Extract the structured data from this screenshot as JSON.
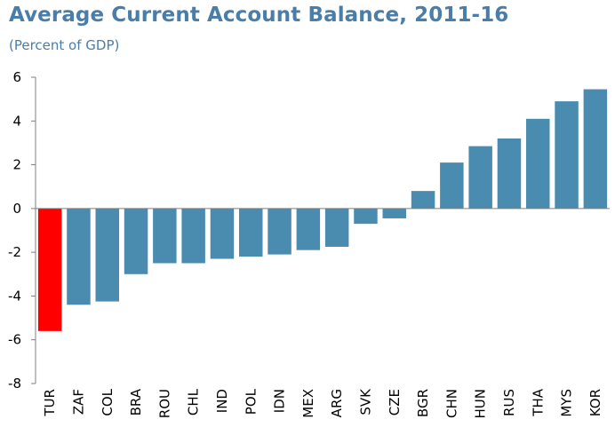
{
  "header": {
    "title": "Average Current Account Balance, 2011-16",
    "subtitle": "(Percent of GDP)"
  },
  "colors": {
    "bar_default": "#4a8cb0",
    "bar_highlight": "#ff0000",
    "axis": "#7f7f7f",
    "title": "#4a7ea8"
  },
  "chart_data": {
    "type": "bar",
    "title": "Average Current Account Balance, 2011-16",
    "subtitle": "(Percent of GDP)",
    "xlabel": "",
    "ylabel": "",
    "ylim": [
      -8,
      6
    ],
    "yticks": [
      6,
      4,
      2,
      0,
      -2,
      -4,
      -6,
      -8
    ],
    "grid": false,
    "legend": "none",
    "categories": [
      "TUR",
      "ZAF",
      "COL",
      "BRA",
      "ROU",
      "CHL",
      "IND",
      "POL",
      "IDN",
      "MEX",
      "ARG",
      "SVK",
      "CZE",
      "BGR",
      "CHN",
      "HUN",
      "RUS",
      "THA",
      "MYS",
      "KOR"
    ],
    "values": [
      -5.6,
      -4.4,
      -4.25,
      -3.0,
      -2.5,
      -2.5,
      -2.3,
      -2.2,
      -2.1,
      -1.9,
      -1.75,
      -0.7,
      -0.45,
      0.8,
      2.1,
      2.85,
      3.2,
      4.1,
      4.9,
      5.45
    ],
    "highlight": [
      "TUR"
    ]
  }
}
